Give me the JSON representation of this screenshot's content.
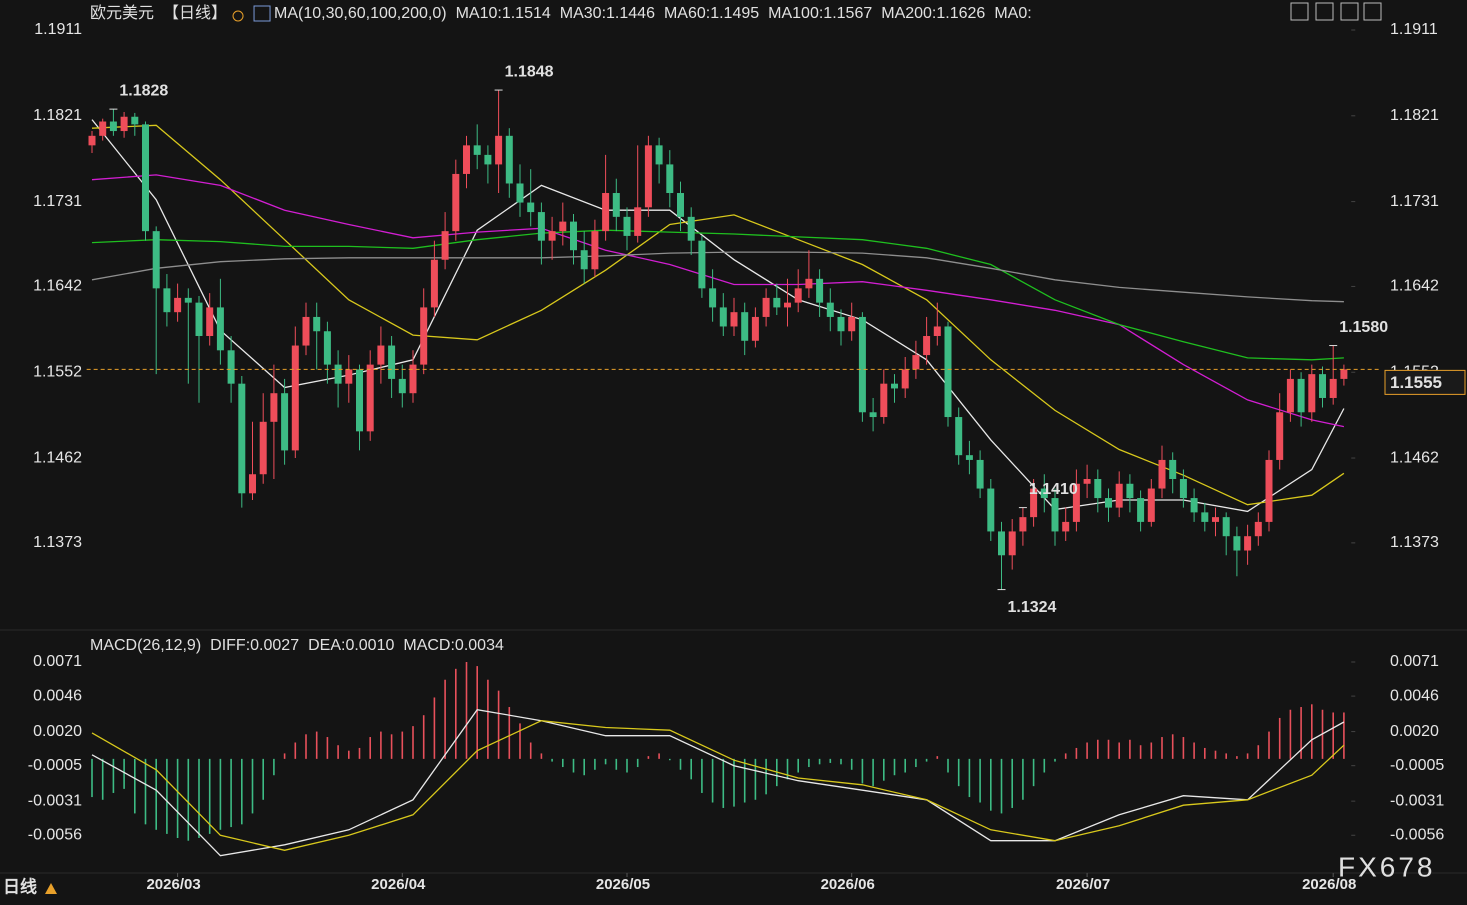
{
  "chart_data": [
    {
      "type": "candlestick",
      "title": "欧元美元",
      "period": "【日线】",
      "indicator": "MA(10,30,60,100,200,0)",
      "up_color": "#ee4d5a",
      "down_color": "#3dbb84",
      "grid": false,
      "xlim": [
        -0.5,
        117.5
      ],
      "ylim": [
        1.129,
        1.1911
      ],
      "yticks": [
        1.1911,
        1.1821,
        1.1731,
        1.1642,
        1.1552,
        1.1462,
        1.1373
      ],
      "candles": [
        [
          1.179,
          1.1805,
          1.1782,
          1.18
        ],
        [
          1.18,
          1.1818,
          1.1795,
          1.1815
        ],
        [
          1.1815,
          1.1828,
          1.18,
          1.1805
        ],
        [
          1.1805,
          1.1825,
          1.1798,
          1.182
        ],
        [
          1.182,
          1.1824,
          1.18,
          1.1812
        ],
        [
          1.1812,
          1.1815,
          1.169,
          1.17
        ],
        [
          1.17,
          1.1705,
          1.155,
          1.164
        ],
        [
          1.164,
          1.1655,
          1.16,
          1.1615
        ],
        [
          1.1615,
          1.1645,
          1.1605,
          1.163
        ],
        [
          1.163,
          1.164,
          1.154,
          1.1625
        ],
        [
          1.1625,
          1.1632,
          1.152,
          1.159
        ],
        [
          1.159,
          1.1635,
          1.158,
          1.162
        ],
        [
          1.162,
          1.165,
          1.156,
          1.1575
        ],
        [
          1.1575,
          1.159,
          1.152,
          1.154
        ],
        [
          1.154,
          1.1548,
          1.141,
          1.1425
        ],
        [
          1.1425,
          1.15,
          1.1418,
          1.1445
        ],
        [
          1.1445,
          1.153,
          1.1435,
          1.15
        ],
        [
          1.15,
          1.156,
          1.144,
          1.153
        ],
        [
          1.153,
          1.1545,
          1.1455,
          1.147
        ],
        [
          1.147,
          1.16,
          1.1462,
          1.158
        ],
        [
          1.158,
          1.1625,
          1.157,
          1.161
        ],
        [
          1.161,
          1.1625,
          1.1555,
          1.1595
        ],
        [
          1.1595,
          1.1605,
          1.154,
          1.156
        ],
        [
          1.156,
          1.1575,
          1.1515,
          1.154
        ],
        [
          1.154,
          1.157,
          1.152,
          1.1555
        ],
        [
          1.1555,
          1.156,
          1.147,
          1.149
        ],
        [
          1.149,
          1.1575,
          1.148,
          1.156
        ],
        [
          1.156,
          1.16,
          1.154,
          1.158
        ],
        [
          1.158,
          1.159,
          1.1525,
          1.1545
        ],
        [
          1.1545,
          1.156,
          1.1515,
          1.153
        ],
        [
          1.153,
          1.1575,
          1.152,
          1.156
        ],
        [
          1.156,
          1.164,
          1.155,
          1.162
        ],
        [
          1.162,
          1.169,
          1.161,
          1.167
        ],
        [
          1.167,
          1.172,
          1.166,
          1.17
        ],
        [
          1.17,
          1.1775,
          1.169,
          1.176
        ],
        [
          1.176,
          1.18,
          1.1745,
          1.179
        ],
        [
          1.179,
          1.1812,
          1.1765,
          1.178
        ],
        [
          1.178,
          1.179,
          1.175,
          1.177
        ],
        [
          1.177,
          1.1848,
          1.174,
          1.18
        ],
        [
          1.18,
          1.1808,
          1.1735,
          1.175
        ],
        [
          1.175,
          1.177,
          1.1715,
          1.173
        ],
        [
          1.173,
          1.1765,
          1.1705,
          1.172
        ],
        [
          1.172,
          1.173,
          1.1665,
          1.169
        ],
        [
          1.169,
          1.1715,
          1.167,
          1.17
        ],
        [
          1.17,
          1.173,
          1.1685,
          1.171
        ],
        [
          1.171,
          1.1718,
          1.1665,
          1.168
        ],
        [
          1.168,
          1.17,
          1.1645,
          1.166
        ],
        [
          1.166,
          1.1712,
          1.1652,
          1.17
        ],
        [
          1.17,
          1.178,
          1.169,
          1.174
        ],
        [
          1.174,
          1.1755,
          1.17,
          1.1715
        ],
        [
          1.1715,
          1.1725,
          1.168,
          1.1695
        ],
        [
          1.1695,
          1.179,
          1.1688,
          1.1725
        ],
        [
          1.1725,
          1.18,
          1.1715,
          1.179
        ],
        [
          1.179,
          1.1798,
          1.175,
          1.177
        ],
        [
          1.177,
          1.1785,
          1.1725,
          1.174
        ],
        [
          1.174,
          1.1752,
          1.17,
          1.1715
        ],
        [
          1.1715,
          1.1725,
          1.1675,
          1.169
        ],
        [
          1.169,
          1.1695,
          1.163,
          1.164
        ],
        [
          1.164,
          1.166,
          1.1605,
          1.162
        ],
        [
          1.162,
          1.1635,
          1.159,
          1.16
        ],
        [
          1.16,
          1.163,
          1.159,
          1.1615
        ],
        [
          1.1615,
          1.1625,
          1.157,
          1.1585
        ],
        [
          1.1585,
          1.162,
          1.1578,
          1.161
        ],
        [
          1.161,
          1.164,
          1.16,
          1.163
        ],
        [
          1.163,
          1.1645,
          1.1612,
          1.162
        ],
        [
          1.162,
          1.165,
          1.16,
          1.1625
        ],
        [
          1.1625,
          1.166,
          1.1615,
          1.164
        ],
        [
          1.164,
          1.168,
          1.163,
          1.165
        ],
        [
          1.165,
          1.166,
          1.161,
          1.1625
        ],
        [
          1.1625,
          1.164,
          1.1595,
          1.161
        ],
        [
          1.161,
          1.1618,
          1.158,
          1.1595
        ],
        [
          1.1595,
          1.1625,
          1.1585,
          1.161
        ],
        [
          1.161,
          1.1615,
          1.15,
          1.151
        ],
        [
          1.151,
          1.1525,
          1.149,
          1.1505
        ],
        [
          1.1505,
          1.1555,
          1.1498,
          1.154
        ],
        [
          1.154,
          1.155,
          1.152,
          1.1535
        ],
        [
          1.1535,
          1.1568,
          1.1525,
          1.1555
        ],
        [
          1.1555,
          1.1585,
          1.1545,
          1.157
        ],
        [
          1.157,
          1.161,
          1.156,
          1.159
        ],
        [
          1.159,
          1.1625,
          1.158,
          1.16
        ],
        [
          1.16,
          1.1605,
          1.1495,
          1.1505
        ],
        [
          1.1505,
          1.1515,
          1.1455,
          1.1465
        ],
        [
          1.1465,
          1.148,
          1.1445,
          1.146
        ],
        [
          1.146,
          1.147,
          1.142,
          1.143
        ],
        [
          1.143,
          1.144,
          1.1375,
          1.1385
        ],
        [
          1.1385,
          1.1395,
          1.1324,
          1.136
        ],
        [
          1.136,
          1.1398,
          1.1345,
          1.1385
        ],
        [
          1.1385,
          1.141,
          1.137,
          1.14
        ],
        [
          1.14,
          1.144,
          1.139,
          1.143
        ],
        [
          1.143,
          1.1445,
          1.1405,
          1.142
        ],
        [
          1.142,
          1.143,
          1.137,
          1.1385
        ],
        [
          1.1385,
          1.141,
          1.1375,
          1.1395
        ],
        [
          1.1395,
          1.145,
          1.1385,
          1.1435
        ],
        [
          1.1435,
          1.1455,
          1.142,
          1.144
        ],
        [
          1.144,
          1.145,
          1.1405,
          1.142
        ],
        [
          1.142,
          1.143,
          1.1395,
          1.141
        ],
        [
          1.141,
          1.1448,
          1.14,
          1.1435
        ],
        [
          1.1435,
          1.1445,
          1.1405,
          1.142
        ],
        [
          1.142,
          1.1428,
          1.1385,
          1.1395
        ],
        [
          1.1395,
          1.144,
          1.139,
          1.143
        ],
        [
          1.143,
          1.1475,
          1.142,
          1.146
        ],
        [
          1.146,
          1.1468,
          1.1425,
          1.144
        ],
        [
          1.144,
          1.145,
          1.141,
          1.142
        ],
        [
          1.142,
          1.143,
          1.1395,
          1.1405
        ],
        [
          1.1405,
          1.1415,
          1.1385,
          1.1395
        ],
        [
          1.1395,
          1.141,
          1.138,
          1.14
        ],
        [
          1.14,
          1.1405,
          1.136,
          1.138
        ],
        [
          1.138,
          1.139,
          1.1338,
          1.1365
        ],
        [
          1.1365,
          1.1392,
          1.135,
          1.138
        ],
        [
          1.138,
          1.1405,
          1.137,
          1.1395
        ],
        [
          1.1395,
          1.147,
          1.1385,
          1.146
        ],
        [
          1.146,
          1.153,
          1.145,
          1.151
        ],
        [
          1.151,
          1.1555,
          1.15,
          1.1545
        ],
        [
          1.1545,
          1.1552,
          1.1495,
          1.151
        ],
        [
          1.151,
          1.156,
          1.15,
          1.155
        ],
        [
          1.155,
          1.1558,
          1.1515,
          1.1525
        ],
        [
          1.1525,
          1.158,
          1.1518,
          1.1545
        ],
        [
          1.1545,
          1.156,
          1.1538,
          1.1555
        ]
      ],
      "annotations": [
        1.1828,
        1.1848,
        {
          "value": 1.141,
          "label": "1.1410"
        },
        1.1324,
        {
          "value": 1.158,
          "label": "1.1580"
        }
      ],
      "x": [
        0,
        6,
        12,
        18,
        24,
        30,
        36,
        42,
        48,
        54,
        60,
        66,
        72,
        78,
        84,
        90,
        96,
        102,
        108,
        114,
        117
      ],
      "series": [
        {
          "name": "MA10:1.1514",
          "color": "#e8e8e8",
          "values": [
            1.1817,
            1.1733,
            1.1596,
            1.1536,
            1.1549,
            1.1565,
            1.1701,
            1.1748,
            1.1722,
            1.1722,
            1.167,
            1.1628,
            1.1607,
            1.1565,
            1.1481,
            1.1408,
            1.1418,
            1.1418,
            1.1406,
            1.145,
            1.1514
          ]
        },
        {
          "name": "MA30:1.1446",
          "color": "#d8c81c",
          "values": [
            1.1808,
            1.1811,
            1.1754,
            1.1691,
            1.1628,
            1.1591,
            1.1586,
            1.1617,
            1.1659,
            1.1707,
            1.1717,
            1.1691,
            1.1665,
            1.1628,
            1.1565,
            1.1512,
            1.1471,
            1.1444,
            1.1413,
            1.1423,
            1.1446
          ]
        },
        {
          "name": "MA60:1.1495",
          "color": "#d21ed2",
          "values": [
            1.1754,
            1.1759,
            1.1748,
            1.1722,
            1.1707,
            1.1693,
            1.1699,
            1.1703,
            1.168,
            1.1665,
            1.1644,
            1.1644,
            1.1647,
            1.1638,
            1.1628,
            1.1617,
            1.1602,
            1.156,
            1.1523,
            1.1502,
            1.1495
          ]
        },
        {
          "name": "MA100:1.1567",
          "color": "#1fbf1f",
          "values": [
            1.1688,
            1.1691,
            1.1689,
            1.1684,
            1.1684,
            1.1682,
            1.1691,
            1.1698,
            1.1701,
            1.1699,
            1.1697,
            1.1694,
            1.1691,
            1.1682,
            1.1665,
            1.1628,
            1.1602,
            1.1584,
            1.1567,
            1.1565,
            1.1567
          ]
        },
        {
          "name": "MA200:1.1626",
          "color": "#8e8e8e",
          "values": [
            1.1649,
            1.1661,
            1.1668,
            1.1671,
            1.1672,
            1.1672,
            1.1672,
            1.1672,
            1.1674,
            1.1677,
            1.1678,
            1.1678,
            1.1677,
            1.1672,
            1.1661,
            1.1649,
            1.1641,
            1.1636,
            1.1631,
            1.1627,
            1.1626
          ]
        }
      ],
      "legend_extra": "MA0:",
      "legend_extra_color": "#e03535",
      "price_line_color": "#e8a02a"
    },
    {
      "type": "macd",
      "title": "MACD(26,12,9)",
      "period_tab": "日线",
      "watermark": "FX678",
      "xlim": [
        -0.5,
        117.5
      ],
      "ylim": [
        -0.008,
        0.0071
      ],
      "yticks": [
        0.0071,
        0.0046,
        {
          "value": 0.002,
          "label": "0.0020"
        },
        -0.0005,
        -0.0031,
        -0.0056
      ],
      "xticks": [
        {
          "value": 8,
          "label": "2026/03"
        },
        {
          "value": 29,
          "label": "2026/04"
        },
        {
          "value": 50,
          "label": "2026/05"
        },
        {
          "value": 71,
          "label": "2026/06"
        },
        {
          "value": 93,
          "label": "2026/07"
        },
        {
          "value": 116,
          "label": "2026/08"
        }
      ],
      "histogram": {
        "name": "MACD:0.0034",
        "color": "#d23cd2",
        "up_color": "#e8505b",
        "down_color": "#3dbb84",
        "values": [
          -0.0028,
          -0.003,
          -0.0025,
          -0.0022,
          -0.004,
          -0.0048,
          -0.0052,
          -0.0055,
          -0.0058,
          -0.006,
          -0.0058,
          -0.0055,
          -0.0052,
          -0.005,
          -0.0048,
          -0.004,
          -0.003,
          -0.0012,
          0.0004,
          0.0012,
          0.0018,
          0.002,
          0.0016,
          0.001,
          0.0006,
          0.0008,
          0.0016,
          0.002,
          0.0018,
          0.002,
          0.0024,
          0.0032,
          0.0045,
          0.0058,
          0.0066,
          0.0071,
          0.0068,
          0.0058,
          0.005,
          0.0038,
          0.0026,
          0.0012,
          0.0004,
          -0.0002,
          -0.0006,
          -0.001,
          -0.0012,
          -0.0008,
          -0.0004,
          -0.0008,
          -0.001,
          -0.0006,
          0.0002,
          0.0004,
          -0.0001,
          -0.0008,
          -0.0015,
          -0.0025,
          -0.0032,
          -0.0036,
          -0.0035,
          -0.0032,
          -0.003,
          -0.0026,
          -0.002,
          -0.0015,
          -0.001,
          -0.0006,
          -0.0004,
          -0.0003,
          -0.0004,
          -0.0008,
          -0.0018,
          -0.002,
          -0.0016,
          -0.0012,
          -0.001,
          -0.0006,
          -0.0002,
          0.0002,
          -0.001,
          -0.002,
          -0.0028,
          -0.0032,
          -0.0038,
          -0.004,
          -0.0036,
          -0.003,
          -0.002,
          -0.001,
          -0.0002,
          0.0004,
          0.0008,
          0.0012,
          0.0014,
          0.0014,
          0.0012,
          0.0014,
          0.001,
          0.0012,
          0.0016,
          0.0018,
          0.0016,
          0.0012,
          0.0008,
          0.0006,
          0.0004,
          0.0002,
          0.0004,
          0.001,
          0.002,
          0.003,
          0.0036,
          0.0038,
          0.004,
          0.0036,
          0.0034,
          0.0034
        ]
      },
      "x": [
        0,
        6,
        12,
        18,
        24,
        30,
        36,
        42,
        48,
        54,
        60,
        66,
        72,
        78,
        84,
        90,
        96,
        102,
        108,
        114,
        117
      ],
      "series": [
        {
          "name": "DIFF:0.0027",
          "color": "#e8e8e8",
          "values": [
            0.0003,
            -0.0023,
            -0.0071,
            -0.0063,
            -0.0052,
            -0.003,
            0.0036,
            0.0028,
            0.0017,
            0.0017,
            -0.0005,
            -0.0016,
            -0.0023,
            -0.003,
            -0.006,
            -0.006,
            -0.0041,
            -0.0027,
            -0.003,
            0.0014,
            0.0027
          ]
        },
        {
          "name": "DEA:0.0010",
          "color": "#d8c81c",
          "values": [
            0.0019,
            -0.0008,
            -0.0056,
            -0.0067,
            -0.0056,
            -0.0041,
            0.0006,
            0.0028,
            0.0023,
            0.0021,
            -0.0001,
            -0.0014,
            -0.0019,
            -0.003,
            -0.0052,
            -0.006,
            -0.0049,
            -0.0034,
            -0.003,
            -0.0012,
            0.001
          ]
        }
      ]
    }
  ]
}
